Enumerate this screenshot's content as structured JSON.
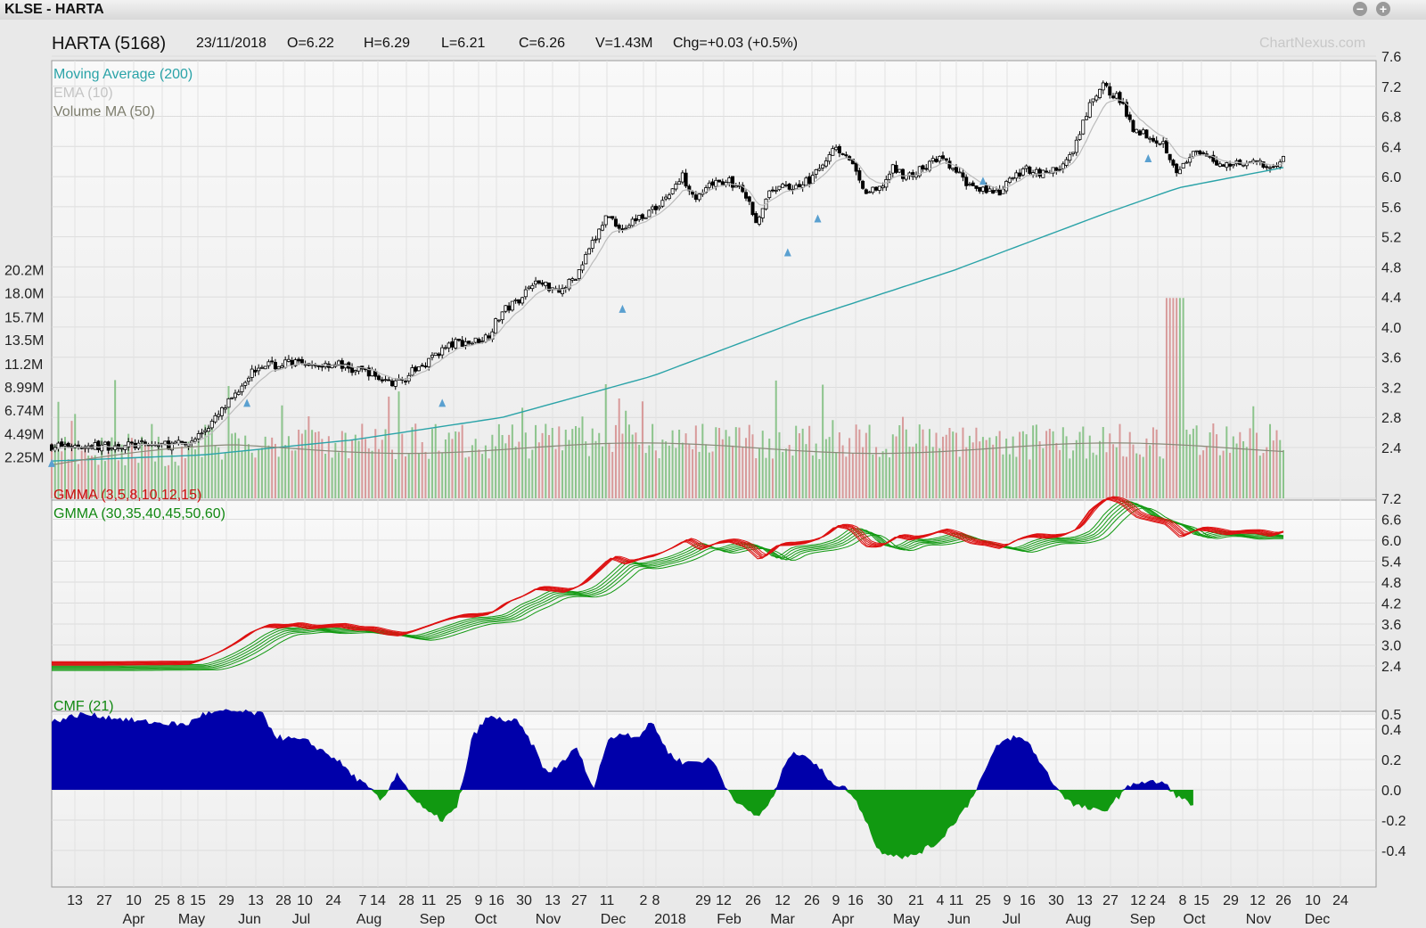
{
  "window": {
    "title": "KLSE - HARTA"
  },
  "header": {
    "symbol": "HARTA (5168)",
    "date": "23/11/2018",
    "open": "O=6.22",
    "high": "H=6.29",
    "low": "L=6.21",
    "close": "C=6.26",
    "volume": "V=1.43M",
    "change": "Chg=+0.03 (+0.5%)",
    "watermark": "ChartNexus.com"
  },
  "legend": {
    "ma200": "Moving Average (200)",
    "ema10": "EMA (10)",
    "vol_ma50": "Volume MA (50)",
    "gmma_short": "GMMA (3,5,8,10,12,15)",
    "gmma_long": "GMMA (30,35,40,45,50,60)",
    "cmf": "CMF (21)"
  },
  "colors": {
    "ma200": "#2aa3a8",
    "ema10": "#bbbbbb",
    "vol_ma": "#8a8a7a",
    "vol_up": "#8cc48c",
    "vol_down": "#d89a9a",
    "gmma_short": "#dd1111",
    "gmma_long": "#119911",
    "cmf_pos": "#0000aa",
    "cmf_neg": "#119911",
    "marker": "#5aa0d0"
  },
  "chart_data": [
    {
      "type": "candlestick",
      "title": "HARTA (5168)",
      "y_axis_ticks": [
        "7.6",
        "7.2",
        "6.8",
        "6.4",
        "6.0",
        "5.6",
        "5.2",
        "4.8",
        "4.4",
        "4.0",
        "3.6",
        "3.2",
        "2.8",
        "2.4"
      ],
      "ylim": [
        2.1,
        7.6
      ],
      "volume_axis_ticks": [
        "20.2M",
        "18.0M",
        "15.7M",
        "13.5M",
        "11.2M",
        "8.99M",
        "6.74M",
        "4.49M",
        "2.25M"
      ],
      "volume_ylim": [
        0,
        22.5
      ],
      "price_path": [
        [
          0,
          2.42
        ],
        [
          3,
          2.42
        ],
        [
          6,
          2.43
        ],
        [
          9,
          2.44
        ],
        [
          10,
          2.6
        ],
        [
          11,
          2.8
        ],
        [
          12,
          3.05
        ],
        [
          13,
          3.35
        ],
        [
          14,
          3.52
        ],
        [
          15,
          3.48
        ],
        [
          16,
          3.55
        ],
        [
          17,
          3.45
        ],
        [
          18,
          3.5
        ],
        [
          19,
          3.52
        ],
        [
          20,
          3.42
        ],
        [
          21,
          3.42
        ],
        [
          22,
          3.3
        ],
        [
          23,
          3.25
        ],
        [
          24,
          3.4
        ],
        [
          25,
          3.55
        ],
        [
          26,
          3.7
        ],
        [
          27,
          3.8
        ],
        [
          28,
          3.8
        ],
        [
          29,
          3.88
        ],
        [
          30,
          4.2
        ],
        [
          31,
          4.35
        ],
        [
          32,
          4.6
        ],
        [
          33,
          4.55
        ],
        [
          34,
          4.5
        ],
        [
          35,
          4.7
        ],
        [
          36,
          5.1
        ],
        [
          37,
          5.5
        ],
        [
          38,
          5.3
        ],
        [
          39,
          5.45
        ],
        [
          40,
          5.55
        ],
        [
          41,
          5.75
        ],
        [
          42,
          6.0
        ],
        [
          43,
          5.7
        ],
        [
          44,
          5.9
        ],
        [
          45,
          5.95
        ],
        [
          46,
          5.8
        ],
        [
          47,
          5.4
        ],
        [
          48,
          5.85
        ],
        [
          49,
          5.85
        ],
        [
          50,
          5.9
        ],
        [
          51,
          6.05
        ],
        [
          52,
          6.4
        ],
        [
          53,
          6.3
        ],
        [
          54,
          5.8
        ],
        [
          55,
          5.8
        ],
        [
          56,
          6.1
        ],
        [
          57,
          6.0
        ],
        [
          58,
          6.1
        ],
        [
          59,
          6.25
        ],
        [
          60,
          6.1
        ],
        [
          61,
          5.9
        ],
        [
          62,
          5.85
        ],
        [
          63,
          5.75
        ],
        [
          64,
          6.0
        ],
        [
          65,
          6.1
        ],
        [
          66,
          6.05
        ],
        [
          67,
          6.1
        ],
        [
          68,
          6.3
        ],
        [
          69,
          6.9
        ],
        [
          70,
          7.2
        ],
        [
          71,
          7.05
        ],
        [
          72,
          6.65
        ],
        [
          73,
          6.55
        ],
        [
          74,
          6.45
        ],
        [
          75,
          6.05
        ],
        [
          76,
          6.3
        ],
        [
          77,
          6.25
        ],
        [
          78,
          6.15
        ],
        [
          79,
          6.2
        ],
        [
          80,
          6.2
        ],
        [
          81,
          6.1
        ],
        [
          82,
          6.26
        ]
      ],
      "ma200_path": [
        [
          0,
          2.22
        ],
        [
          10,
          2.3
        ],
        [
          20,
          2.5
        ],
        [
          30,
          2.8
        ],
        [
          40,
          3.35
        ],
        [
          50,
          4.1
        ],
        [
          60,
          4.75
        ],
        [
          70,
          5.5
        ],
        [
          75,
          5.85
        ],
        [
          82,
          6.12
        ]
      ],
      "up_markers": [
        [
          0,
          2.2
        ],
        [
          13,
          3.0
        ],
        [
          26,
          3.0
        ],
        [
          38,
          4.25
        ],
        [
          49,
          5.0
        ],
        [
          51,
          5.45
        ],
        [
          62,
          5.95
        ],
        [
          73,
          6.25
        ]
      ],
      "series": [
        {
          "name": "Moving Average (200)"
        },
        {
          "name": "EMA (10)"
        },
        {
          "name": "Volume MA (50)"
        }
      ]
    },
    {
      "type": "line",
      "title": "GMMA",
      "y_axis_ticks": [
        "7.2",
        "6.6",
        "6.0",
        "5.4",
        "4.8",
        "4.2",
        "3.6",
        "3.0",
        "2.4"
      ],
      "ylim": [
        2.1,
        7.6
      ],
      "series": [
        {
          "name": "GMMA (3,5,8,10,12,15)"
        },
        {
          "name": "GMMA (30,35,40,45,50,60)"
        }
      ]
    },
    {
      "type": "area",
      "title": "CMF (21)",
      "y_axis_ticks": [
        "0.5",
        "0.4",
        "0.2",
        "0.0",
        "-0.2",
        "-0.4"
      ],
      "ylim": [
        -0.55,
        0.58
      ],
      "cmf_path": [
        [
          0,
          0.45
        ],
        [
          2,
          0.5
        ],
        [
          4,
          0.48
        ],
        [
          6,
          0.45
        ],
        [
          9,
          0.43
        ],
        [
          10,
          0.5
        ],
        [
          12,
          0.52
        ],
        [
          14,
          0.5
        ],
        [
          15,
          0.35
        ],
        [
          17,
          0.32
        ],
        [
          19,
          0.2
        ],
        [
          20,
          0.1
        ],
        [
          21,
          0.02
        ],
        [
          22,
          -0.08
        ],
        [
          23,
          0.12
        ],
        [
          24,
          -0.05
        ],
        [
          25,
          -0.15
        ],
        [
          26,
          -0.2
        ],
        [
          27,
          -0.12
        ],
        [
          28,
          0.35
        ],
        [
          29,
          0.48
        ],
        [
          31,
          0.45
        ],
        [
          32,
          0.3
        ],
        [
          33,
          0.1
        ],
        [
          35,
          0.28
        ],
        [
          36,
          0.0
        ],
        [
          37,
          0.32
        ],
        [
          38,
          0.38
        ],
        [
          39,
          0.35
        ],
        [
          40,
          0.45
        ],
        [
          41,
          0.25
        ],
        [
          42,
          0.18
        ],
        [
          44,
          0.2
        ],
        [
          45,
          0.0
        ],
        [
          46,
          -0.12
        ],
        [
          47,
          -0.18
        ],
        [
          48,
          -0.06
        ],
        [
          49,
          0.22
        ],
        [
          50,
          0.25
        ],
        [
          51,
          0.15
        ],
        [
          52,
          0.05
        ],
        [
          53,
          0.0
        ],
        [
          54,
          -0.15
        ],
        [
          55,
          -0.4
        ],
        [
          57,
          -0.45
        ],
        [
          59,
          -0.35
        ],
        [
          61,
          -0.1
        ],
        [
          62,
          0.1
        ],
        [
          63,
          0.3
        ],
        [
          64,
          0.35
        ],
        [
          65,
          0.32
        ],
        [
          66,
          0.15
        ],
        [
          67,
          0.0
        ],
        [
          68,
          -0.1
        ],
        [
          70,
          -0.15
        ],
        [
          71,
          -0.05
        ],
        [
          72,
          0.05
        ],
        [
          74,
          0.05
        ],
        [
          75,
          -0.05
        ],
        [
          76,
          -0.1
        ]
      ]
    }
  ],
  "x_axis": {
    "days": [
      "13",
      "27",
      "10",
      "25",
      "8",
      "15",
      "29",
      "13",
      "28",
      "10",
      "24",
      "7",
      "14",
      "28",
      "11",
      "25",
      "9",
      "16",
      "30",
      "13",
      "27",
      "11",
      "2",
      "8",
      "29",
      "12",
      "26",
      "12",
      "26",
      "9",
      "16",
      "30",
      "21",
      "4",
      "11",
      "25",
      "9",
      "16",
      "30",
      "13",
      "27",
      "12",
      "24",
      "8",
      "15",
      "29",
      "12",
      "26",
      "10",
      "24"
    ],
    "months": [
      "Apr",
      "May",
      "Jun",
      "Jul",
      "Aug",
      "Sep",
      "Oct",
      "Nov",
      "Dec",
      "2018",
      "Feb",
      "Mar",
      "Apr",
      "May",
      "Jun",
      "Jul",
      "Aug",
      "Sep",
      "Oct",
      "Nov",
      "Dec"
    ]
  }
}
